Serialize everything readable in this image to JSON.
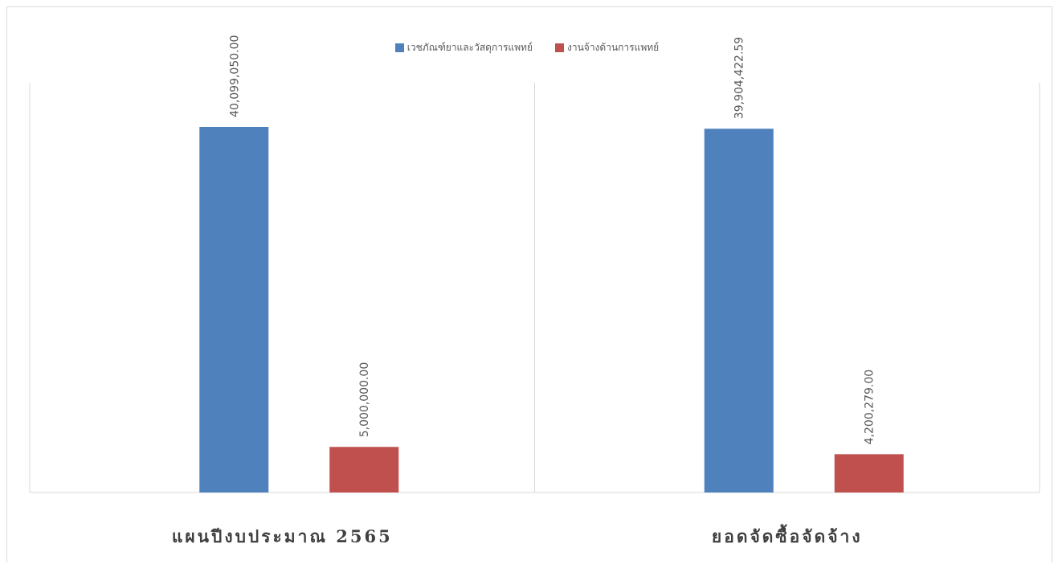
{
  "chart_data": {
    "type": "bar",
    "categories": [
      "แผนปีงบประมาณ 2565",
      "ยอดจัดซื้อจัดจ้าง"
    ],
    "series": [
      {
        "name": "เวชภัณฑ์ยาและวัสดุการแพทย์",
        "color": "#4f81bd",
        "values": [
          40099050.0,
          39904422.59
        ],
        "labels": [
          "40,099,050.00",
          "39,904,422.59"
        ]
      },
      {
        "name": "งานจ้างด้านการแพทย์",
        "color": "#c0504d",
        "values": [
          5000000.0,
          4200279.0
        ],
        "labels": [
          "5,000,000.00",
          "4,200,279.00"
        ]
      }
    ],
    "title": "",
    "xlabel": "",
    "ylabel": "",
    "ylim": [
      0,
      45000000
    ],
    "grid": false,
    "legend_position": "top",
    "data_labels": "rotated-vertical"
  }
}
